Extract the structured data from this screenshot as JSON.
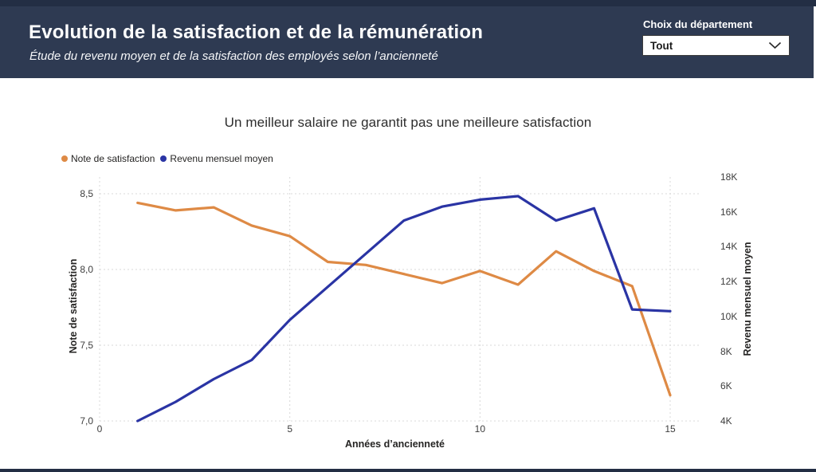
{
  "page": {
    "bg_color": "#ffffff",
    "edge_strip_color": "#232e44"
  },
  "header": {
    "title": "Evolution de la satisfaction et de la rémunération",
    "subtitle": "Étude du revenu moyen et de la satisfaction des employés selon l’ancienneté",
    "bg_color": "#2e3a52"
  },
  "filter": {
    "label": "Choix du département",
    "value": "Tout",
    "icon": "chevron-down"
  },
  "chart_data": {
    "type": "line",
    "title": "Un meilleur salaire ne garantit pas une meilleure satisfaction",
    "xlabel": "Années d’ancienneté",
    "x": [
      1,
      2,
      3,
      4,
      5,
      6,
      7,
      8,
      9,
      10,
      11,
      12,
      13,
      14,
      15
    ],
    "x_ticks": {
      "labels": [
        "0",
        "5",
        "10",
        "15"
      ],
      "values": [
        0,
        5,
        10,
        15
      ]
    },
    "xlim": [
      0,
      15.7
    ],
    "grid": "dotted",
    "legend_position": "top-left",
    "series": [
      {
        "name": "Note de satisfaction",
        "axis": "left",
        "color": "#de8a45",
        "values": [
          8.44,
          8.39,
          8.41,
          8.29,
          8.22,
          8.05,
          8.03,
          7.97,
          7.91,
          7.99,
          7.9,
          8.12,
          7.99,
          7.89,
          7.17
        ]
      },
      {
        "name": "Revenu mensuel moyen",
        "axis": "right",
        "color": "#2a34a4",
        "values": [
          4000,
          5100,
          6400,
          7500,
          9800,
          11700,
          13600,
          15500,
          16300,
          16700,
          16900,
          15500,
          16200,
          10400,
          10300
        ]
      }
    ],
    "left_axis": {
      "label": "Note de satisfaction",
      "range": [
        7.0,
        8.5
      ],
      "ticks": [
        "8,5",
        "8,0",
        "7,5",
        "7,0"
      ],
      "tick_values": [
        8.5,
        8.0,
        7.5,
        7.0
      ]
    },
    "right_axis": {
      "label": "Revenu mensuel moyen",
      "range": [
        4000,
        18000
      ],
      "ticks": [
        "18K",
        "16K",
        "14K",
        "12K",
        "10K",
        "8K",
        "6K",
        "4K"
      ],
      "tick_values": [
        18000,
        16000,
        14000,
        12000,
        10000,
        8000,
        6000,
        4000
      ]
    }
  }
}
